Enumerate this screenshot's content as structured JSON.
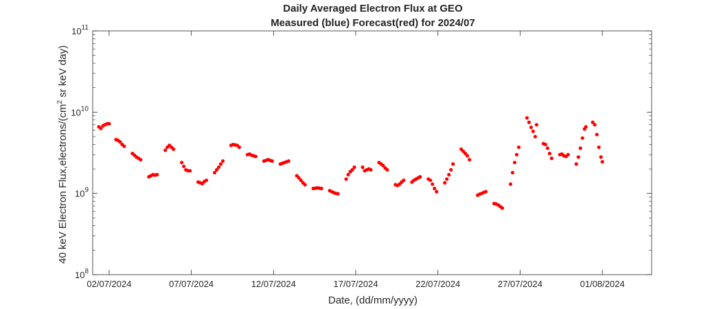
{
  "chart_data": {
    "type": "scatter",
    "title": "Daily Averaged Electron Flux at GEO",
    "subtitle": "Measured (blue) Forecast(red) for 2024/07",
    "xlabel": "Date, (dd/mm/yyyy)",
    "ylabel": {
      "before": "40 keV Electron Flux,electrons/(cm",
      "sup": "2",
      "after": " sr keV day)"
    },
    "y_scale": "log",
    "ylim": [
      100000000,
      100000000000
    ],
    "y_ticks": [
      {
        "value": 100000000,
        "base": "10",
        "exp": "8"
      },
      {
        "value": 1000000000,
        "base": "10",
        "exp": "9"
      },
      {
        "value": 10000000000,
        "base": "10",
        "exp": "10"
      },
      {
        "value": 100000000000,
        "base": "10",
        "exp": "11"
      }
    ],
    "xlim": [
      "2024-07-01",
      "2024-08-04"
    ],
    "x_ticks": [
      {
        "date": "2024-07-02",
        "label": "02/07/2024"
      },
      {
        "date": "2024-07-07",
        "label": "07/07/2024"
      },
      {
        "date": "2024-07-12",
        "label": "12/07/2024"
      },
      {
        "date": "2024-07-17",
        "label": "17/07/2024"
      },
      {
        "date": "2024-07-22",
        "label": "22/07/2024"
      },
      {
        "date": "2024-07-27",
        "label": "27/07/2024"
      },
      {
        "date": "2024-08-01",
        "label": "01/08/2024"
      }
    ],
    "grid": false,
    "series": [
      {
        "color": "#ff0000",
        "segments": [
          [
            [
              "2024-07-01T09:00",
              6600000000.0
            ],
            [
              "2024-07-01T12:00",
              6300000000.0
            ],
            [
              "2024-07-01T15:00",
              6800000000.0
            ],
            [
              "2024-07-01T18:00",
              7000000000.0
            ],
            [
              "2024-07-01T21:00",
              7200000000.0
            ],
            [
              "2024-07-02T00:00",
              7200000000.0
            ]
          ],
          [
            [
              "2024-07-02T10:00",
              4600000000.0
            ],
            [
              "2024-07-02T13:00",
              4500000000.0
            ],
            [
              "2024-07-02T16:00",
              4300000000.0
            ],
            [
              "2024-07-02T19:00",
              4000000000.0
            ],
            [
              "2024-07-02T22:00",
              3800000000.0
            ]
          ],
          [
            [
              "2024-07-03T10:00",
              3100000000.0
            ],
            [
              "2024-07-03T13:00",
              2950000000.0
            ],
            [
              "2024-07-03T16:00",
              2800000000.0
            ],
            [
              "2024-07-03T19:00",
              2700000000.0
            ],
            [
              "2024-07-03T22:00",
              2600000000.0
            ]
          ],
          [
            [
              "2024-07-04T10:00",
              1600000000.0
            ],
            [
              "2024-07-04T13:00",
              1650000000.0
            ],
            [
              "2024-07-04T16:00",
              1700000000.0
            ],
            [
              "2024-07-04T19:00",
              1680000000.0
            ],
            [
              "2024-07-04T22:00",
              1700000000.0
            ]
          ],
          [
            [
              "2024-07-05T10:00",
              3400000000.0
            ],
            [
              "2024-07-05T13:00",
              3700000000.0
            ],
            [
              "2024-07-05T16:00",
              3900000000.0
            ],
            [
              "2024-07-05T19:00",
              3700000000.0
            ],
            [
              "2024-07-05T22:00",
              3500000000.0
            ]
          ],
          [
            [
              "2024-07-06T10:00",
              2400000000.0
            ],
            [
              "2024-07-06T13:00",
              2150000000.0
            ],
            [
              "2024-07-06T16:00",
              1950000000.0
            ],
            [
              "2024-07-06T19:00",
              1900000000.0
            ],
            [
              "2024-07-06T22:00",
              1900000000.0
            ]
          ],
          [
            [
              "2024-07-07T10:00",
              1380000000.0
            ],
            [
              "2024-07-07T13:00",
              1350000000.0
            ],
            [
              "2024-07-07T16:00",
              1320000000.0
            ],
            [
              "2024-07-07T19:00",
              1400000000.0
            ],
            [
              "2024-07-07T22:00",
              1450000000.0
            ]
          ],
          [
            [
              "2024-07-08T10:00",
              1800000000.0
            ],
            [
              "2024-07-08T13:00",
              1950000000.0
            ],
            [
              "2024-07-08T16:00",
              2100000000.0
            ],
            [
              "2024-07-08T19:00",
              2300000000.0
            ],
            [
              "2024-07-08T22:00",
              2500000000.0
            ]
          ],
          [
            [
              "2024-07-09T10:00",
              3900000000.0
            ],
            [
              "2024-07-09T13:00",
              4000000000.0
            ],
            [
              "2024-07-09T16:00",
              3950000000.0
            ],
            [
              "2024-07-09T19:00",
              3900000000.0
            ],
            [
              "2024-07-09T22:00",
              3700000000.0
            ]
          ],
          [
            [
              "2024-07-10T10:00",
              3000000000.0
            ],
            [
              "2024-07-10T13:00",
              3050000000.0
            ],
            [
              "2024-07-10T16:00",
              2950000000.0
            ],
            [
              "2024-07-10T19:00",
              2900000000.0
            ],
            [
              "2024-07-10T22:00",
              2850000000.0
            ]
          ],
          [
            [
              "2024-07-11T10:00",
              2500000000.0
            ],
            [
              "2024-07-11T13:00",
              2550000000.0
            ],
            [
              "2024-07-11T16:00",
              2600000000.0
            ],
            [
              "2024-07-11T19:00",
              2550000000.0
            ],
            [
              "2024-07-11T22:00",
              2500000000.0
            ]
          ],
          [
            [
              "2024-07-12T10:00",
              2300000000.0
            ],
            [
              "2024-07-12T13:00",
              2350000000.0
            ],
            [
              "2024-07-12T16:00",
              2400000000.0
            ],
            [
              "2024-07-12T19:00",
              2450000000.0
            ],
            [
              "2024-07-12T22:00",
              2500000000.0
            ]
          ],
          [
            [
              "2024-07-13T10:00",
              1650000000.0
            ],
            [
              "2024-07-13T13:00",
              1550000000.0
            ],
            [
              "2024-07-13T16:00",
              1450000000.0
            ],
            [
              "2024-07-13T19:00",
              1350000000.0
            ],
            [
              "2024-07-13T22:00",
              1280000000.0
            ]
          ],
          [
            [
              "2024-07-14T10:00",
              1150000000.0
            ],
            [
              "2024-07-14T13:00",
              1160000000.0
            ],
            [
              "2024-07-14T16:00",
              1170000000.0
            ],
            [
              "2024-07-14T19:00",
              1160000000.0
            ],
            [
              "2024-07-14T22:00",
              1150000000.0
            ]
          ],
          [
            [
              "2024-07-15T10:00",
              1080000000.0
            ],
            [
              "2024-07-15T13:00",
              1050000000.0
            ],
            [
              "2024-07-15T16:00",
              1020000000.0
            ],
            [
              "2024-07-15T19:00",
              1000000000.0
            ],
            [
              "2024-07-15T22:00",
              990000000.0
            ]
          ],
          [
            [
              "2024-07-16T10:00",
              1500000000.0
            ],
            [
              "2024-07-16T13:00",
              1700000000.0
            ],
            [
              "2024-07-16T16:00",
              1850000000.0
            ],
            [
              "2024-07-16T19:00",
              1950000000.0
            ],
            [
              "2024-07-16T22:00",
              2100000000.0
            ]
          ],
          [
            [
              "2024-07-17T10:00",
              2100000000.0
            ],
            [
              "2024-07-17T13:00",
              1900000000.0
            ],
            [
              "2024-07-17T16:00",
              1950000000.0
            ],
            [
              "2024-07-17T19:00",
              2000000000.0
            ],
            [
              "2024-07-17T22:00",
              1950000000.0
            ]
          ],
          [
            [
              "2024-07-18T10:00",
              2400000000.0
            ],
            [
              "2024-07-18T13:00",
              2300000000.0
            ],
            [
              "2024-07-18T16:00",
              2200000000.0
            ],
            [
              "2024-07-18T19:00",
              2050000000.0
            ],
            [
              "2024-07-18T22:00",
              1950000000.0
            ]
          ],
          [
            [
              "2024-07-19T10:00",
              1280000000.0
            ],
            [
              "2024-07-19T13:00",
              1250000000.0
            ],
            [
              "2024-07-19T16:00",
              1300000000.0
            ],
            [
              "2024-07-19T19:00",
              1380000000.0
            ],
            [
              "2024-07-19T22:00",
              1450000000.0
            ]
          ],
          [
            [
              "2024-07-20T10:00",
              1380000000.0
            ],
            [
              "2024-07-20T13:00",
              1450000000.0
            ],
            [
              "2024-07-20T16:00",
              1500000000.0
            ],
            [
              "2024-07-20T19:00",
              1550000000.0
            ],
            [
              "2024-07-20T22:00",
              1600000000.0
            ]
          ],
          [
            [
              "2024-07-21T10:00",
              1500000000.0
            ],
            [
              "2024-07-21T13:00",
              1450000000.0
            ],
            [
              "2024-07-21T16:00",
              1300000000.0
            ],
            [
              "2024-07-21T19:00",
              1150000000.0
            ],
            [
              "2024-07-21T22:00",
              1050000000.0
            ]
          ],
          [
            [
              "2024-07-22T10:00",
              1350000000.0
            ],
            [
              "2024-07-22T13:00",
              1500000000.0
            ],
            [
              "2024-07-22T16:00",
              1700000000.0
            ],
            [
              "2024-07-22T19:00",
              1950000000.0
            ],
            [
              "2024-07-22T22:00",
              2300000000.0
            ]
          ],
          [
            [
              "2024-07-23T10:00",
              3500000000.0
            ],
            [
              "2024-07-23T13:00",
              3300000000.0
            ],
            [
              "2024-07-23T16:00",
              3100000000.0
            ],
            [
              "2024-07-23T19:00",
              2900000000.0
            ],
            [
              "2024-07-23T22:00",
              2600000000.0
            ]
          ],
          [
            [
              "2024-07-24T10:00",
              950000000.0
            ],
            [
              "2024-07-24T13:00",
              980000000.0
            ],
            [
              "2024-07-24T16:00",
              1000000000.0
            ],
            [
              "2024-07-24T19:00",
              1030000000.0
            ],
            [
              "2024-07-24T22:00",
              1050000000.0
            ]
          ],
          [
            [
              "2024-07-25T10:00",
              750000000.0
            ],
            [
              "2024-07-25T13:00",
              740000000.0
            ],
            [
              "2024-07-25T16:00",
              720000000.0
            ],
            [
              "2024-07-25T19:00",
              690000000.0
            ],
            [
              "2024-07-25T22:00",
              660000000.0
            ]
          ],
          [
            [
              "2024-07-26T10:00",
              1300000000.0
            ],
            [
              "2024-07-26T13:00",
              1800000000.0
            ],
            [
              "2024-07-26T16:00",
              2400000000.0
            ],
            [
              "2024-07-26T19:00",
              3000000000.0
            ],
            [
              "2024-07-26T22:00",
              3700000000.0
            ]
          ],
          [
            [
              "2024-07-27T10:00",
              8500000000.0
            ],
            [
              "2024-07-27T13:00",
              7500000000.0
            ],
            [
              "2024-07-27T16:00",
              6500000000.0
            ],
            [
              "2024-07-27T19:00",
              5800000000.0
            ],
            [
              "2024-07-27T22:00",
              5000000000.0
            ],
            [
              "2024-07-28T00:00",
              7000000000.0
            ]
          ],
          [
            [
              "2024-07-28T10:00",
              4100000000.0
            ],
            [
              "2024-07-28T13:00",
              4000000000.0
            ],
            [
              "2024-07-28T16:00",
              3600000000.0
            ],
            [
              "2024-07-28T19:00",
              3100000000.0
            ],
            [
              "2024-07-28T22:00",
              2700000000.0
            ]
          ],
          [
            [
              "2024-07-29T10:00",
              3000000000.0
            ],
            [
              "2024-07-29T13:00",
              3050000000.0
            ],
            [
              "2024-07-29T16:00",
              2900000000.0
            ],
            [
              "2024-07-29T19:00",
              2850000000.0
            ],
            [
              "2024-07-29T22:00",
              3000000000.0
            ]
          ],
          [
            [
              "2024-07-30T10:00",
              2300000000.0
            ],
            [
              "2024-07-30T13:00",
              2800000000.0
            ],
            [
              "2024-07-30T16:00",
              3600000000.0
            ],
            [
              "2024-07-30T19:00",
              4800000000.0
            ],
            [
              "2024-07-30T22:00",
              6200000000.0
            ],
            [
              "2024-07-31T00:00",
              6600000000.0
            ]
          ],
          [
            [
              "2024-07-31T10:00",
              7500000000.0
            ],
            [
              "2024-07-31T13:00",
              7000000000.0
            ],
            [
              "2024-07-31T16:00",
              5300000000.0
            ],
            [
              "2024-07-31T19:00",
              3700000000.0
            ],
            [
              "2024-07-31T22:00",
              2800000000.0
            ],
            [
              "2024-08-01T00:00",
              2450000000.0
            ]
          ]
        ]
      }
    ]
  }
}
